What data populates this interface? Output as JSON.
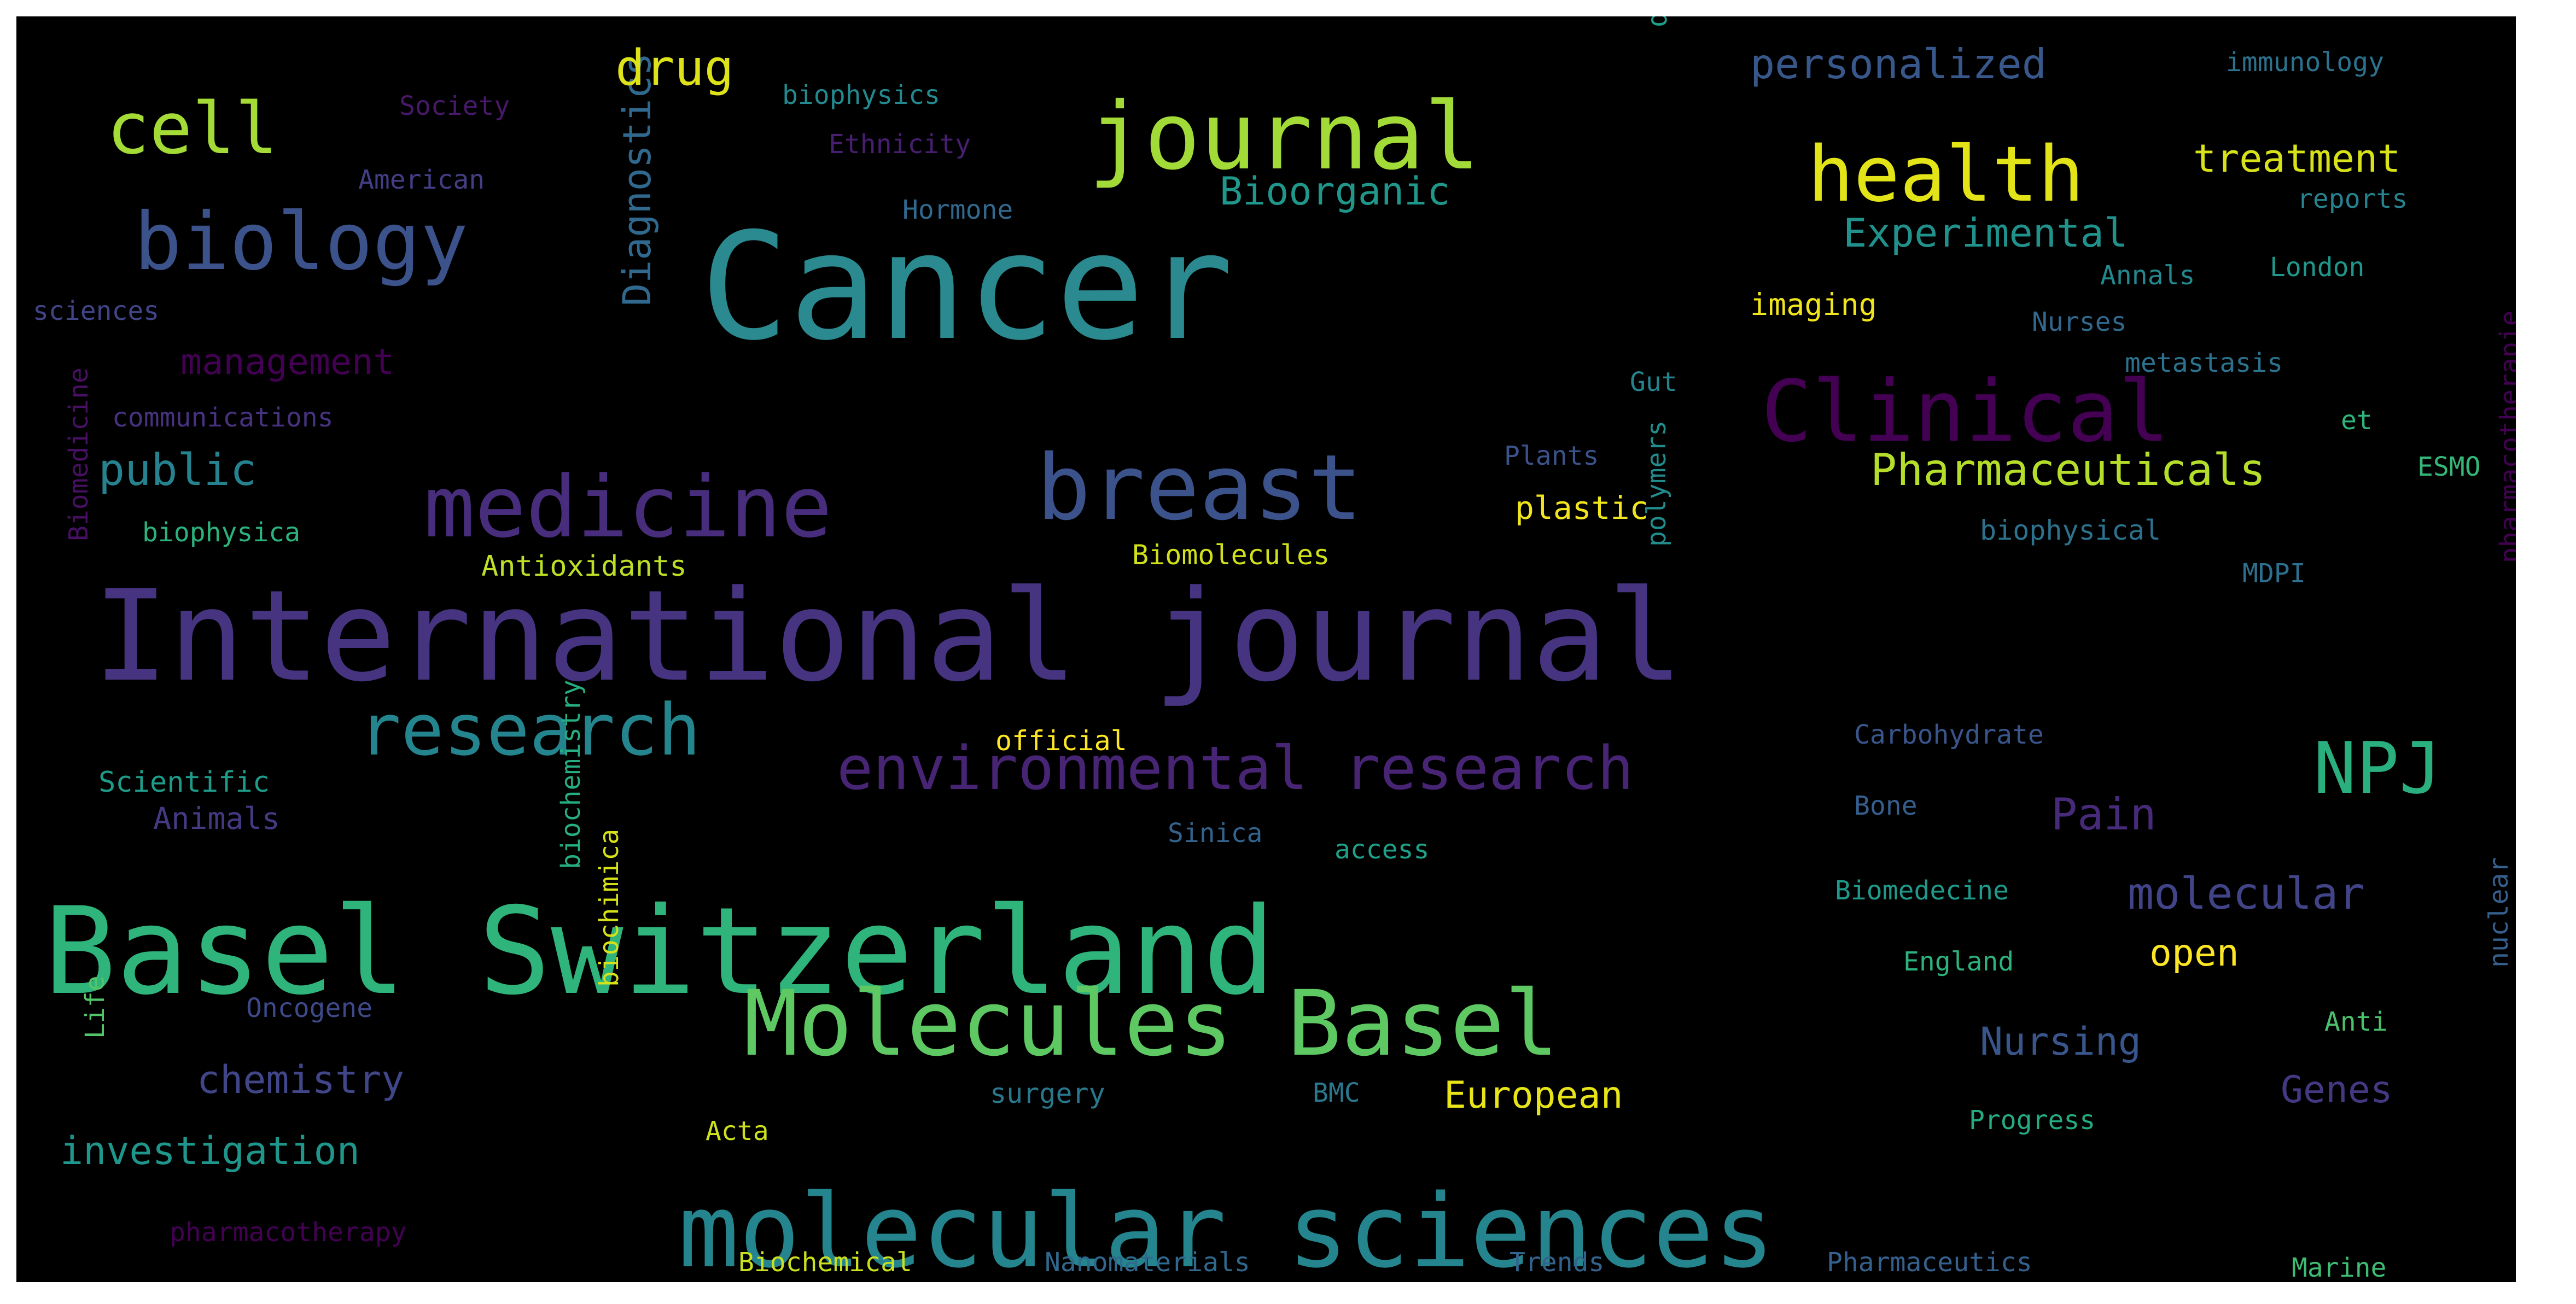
{
  "words": [
    {
      "text": "Cancer",
      "color": "#2a8a8f"
    },
    {
      "text": "International journal",
      "color": "#463480"
    },
    {
      "text": "Basel Switzerland",
      "color": "#2fb47c"
    },
    {
      "text": "molecular sciences",
      "color": "#25858e"
    },
    {
      "text": "journal",
      "color": "#a2da37"
    },
    {
      "text": "Molecules Basel",
      "color": "#5ec962"
    },
    {
      "text": "breast",
      "color": "#3b528b"
    },
    {
      "text": "medicine",
      "color": "#472d7b"
    },
    {
      "text": "Clinical",
      "color": "#440154"
    },
    {
      "text": "biology",
      "color": "#3b528b"
    },
    {
      "text": "health",
      "color": "#e3e418"
    },
    {
      "text": "research",
      "color": "#25858e"
    },
    {
      "text": "environmental research",
      "color": "#482475"
    },
    {
      "text": "NPJ",
      "color": "#2ab07f"
    },
    {
      "text": "cell",
      "color": "#a5db36"
    },
    {
      "text": "Pharmaceuticals",
      "color": "#b5de2b"
    },
    {
      "text": "Diagnostics",
      "color": "#31688e"
    },
    {
      "text": "public",
      "color": "#26828e"
    },
    {
      "text": "molecular",
      "color": "#414487"
    },
    {
      "text": "personalized",
      "color": "#38588c"
    },
    {
      "text": "Experimental",
      "color": "#21918c"
    },
    {
      "text": "Bioorganic",
      "color": "#1f988b"
    },
    {
      "text": "treatment",
      "color": "#d8e219"
    },
    {
      "text": "drug",
      "color": "#dde318"
    },
    {
      "text": "Pain",
      "color": "#472a7a"
    },
    {
      "text": "management",
      "color": "#440154"
    },
    {
      "text": "chemistry",
      "color": "#404688"
    },
    {
      "text": "investigation",
      "color": "#1f968b"
    },
    {
      "text": "Nursing",
      "color": "#39568c"
    },
    {
      "text": "European",
      "color": "#e7e419"
    },
    {
      "text": "Genes",
      "color": "#453882"
    },
    {
      "text": "open",
      "color": "#fde725"
    },
    {
      "text": "imaging",
      "color": "#f1e51d"
    },
    {
      "text": "plastic",
      "color": "#f1e51d"
    },
    {
      "text": "Antioxidants",
      "color": "#bddf26"
    },
    {
      "text": "Biomolecules",
      "color": "#d0e11c"
    },
    {
      "text": "official",
      "color": "#fde725"
    },
    {
      "text": "Animals",
      "color": "#443a83"
    },
    {
      "text": "Scientific",
      "color": "#1e9c89"
    },
    {
      "text": "biophysica",
      "color": "#2db27d"
    },
    {
      "text": "communications",
      "color": "#46327e"
    },
    {
      "text": "sciences",
      "color": "#414487"
    },
    {
      "text": "American",
      "color": "#433e85"
    },
    {
      "text": "Society",
      "color": "#48186a"
    },
    {
      "text": "biophysics",
      "color": "#23898e"
    },
    {
      "text": "Ethnicity",
      "color": "#481f70"
    },
    {
      "text": "Hormone",
      "color": "#31688e"
    },
    {
      "text": "digital",
      "color": "#1f9e89"
    },
    {
      "text": "immunology",
      "color": "#2c728e"
    },
    {
      "text": "reports",
      "color": "#26828e"
    },
    {
      "text": "London",
      "color": "#1f988b"
    },
    {
      "text": "Annals",
      "color": "#23898e"
    },
    {
      "text": "Nurses",
      "color": "#31688e"
    },
    {
      "text": "metastasis",
      "color": "#2c728e"
    },
    {
      "text": "Gut",
      "color": "#25838e"
    },
    {
      "text": "et",
      "color": "#2fb47c"
    },
    {
      "text": "Plants",
      "color": "#3b528b"
    },
    {
      "text": "ESMO",
      "color": "#35b779"
    },
    {
      "text": "biophysical",
      "color": "#2c728e"
    },
    {
      "text": "MDPI",
      "color": "#2d708e"
    },
    {
      "text": "polymers",
      "color": "#228c8d"
    },
    {
      "text": "Carbohydrate",
      "color": "#39558c"
    },
    {
      "text": "pharmacotherapie",
      "color": "#440154"
    },
    {
      "text": "Bone",
      "color": "#355f8d"
    },
    {
      "text": "Sinica",
      "color": "#33638d"
    },
    {
      "text": "access",
      "color": "#1fa088"
    },
    {
      "text": "Biomedecine",
      "color": "#1f9a8a"
    },
    {
      "text": "England",
      "color": "#2db27d"
    },
    {
      "text": "nuclear",
      "color": "#355f8d"
    },
    {
      "text": "Anti",
      "color": "#4ac16d"
    },
    {
      "text": "Progress",
      "color": "#25ab82"
    },
    {
      "text": "Marine",
      "color": "#3fbc73"
    },
    {
      "text": "Pharmaceutics",
      "color": "#34618d"
    },
    {
      "text": "Trends",
      "color": "#33638d"
    },
    {
      "text": "Nanomaterials",
      "color": "#31688e"
    },
    {
      "text": "Biochemical",
      "color": "#cae11f"
    },
    {
      "text": "surgery",
      "color": "#2a788e"
    },
    {
      "text": "BMC",
      "color": "#2a788e"
    },
    {
      "text": "Acta",
      "color": "#cde11d"
    },
    {
      "text": "biochimica",
      "color": "#d8e219"
    },
    {
      "text": "biochemistry",
      "color": "#26ad81"
    },
    {
      "text": "Oncogene",
      "color": "#3e4989"
    },
    {
      "text": "Life",
      "color": "#52c569"
    },
    {
      "text": "pharmacotherapy",
      "color": "#440154"
    },
    {
      "text": "Biomedicine",
      "color": "#471063"
    }
  ]
}
